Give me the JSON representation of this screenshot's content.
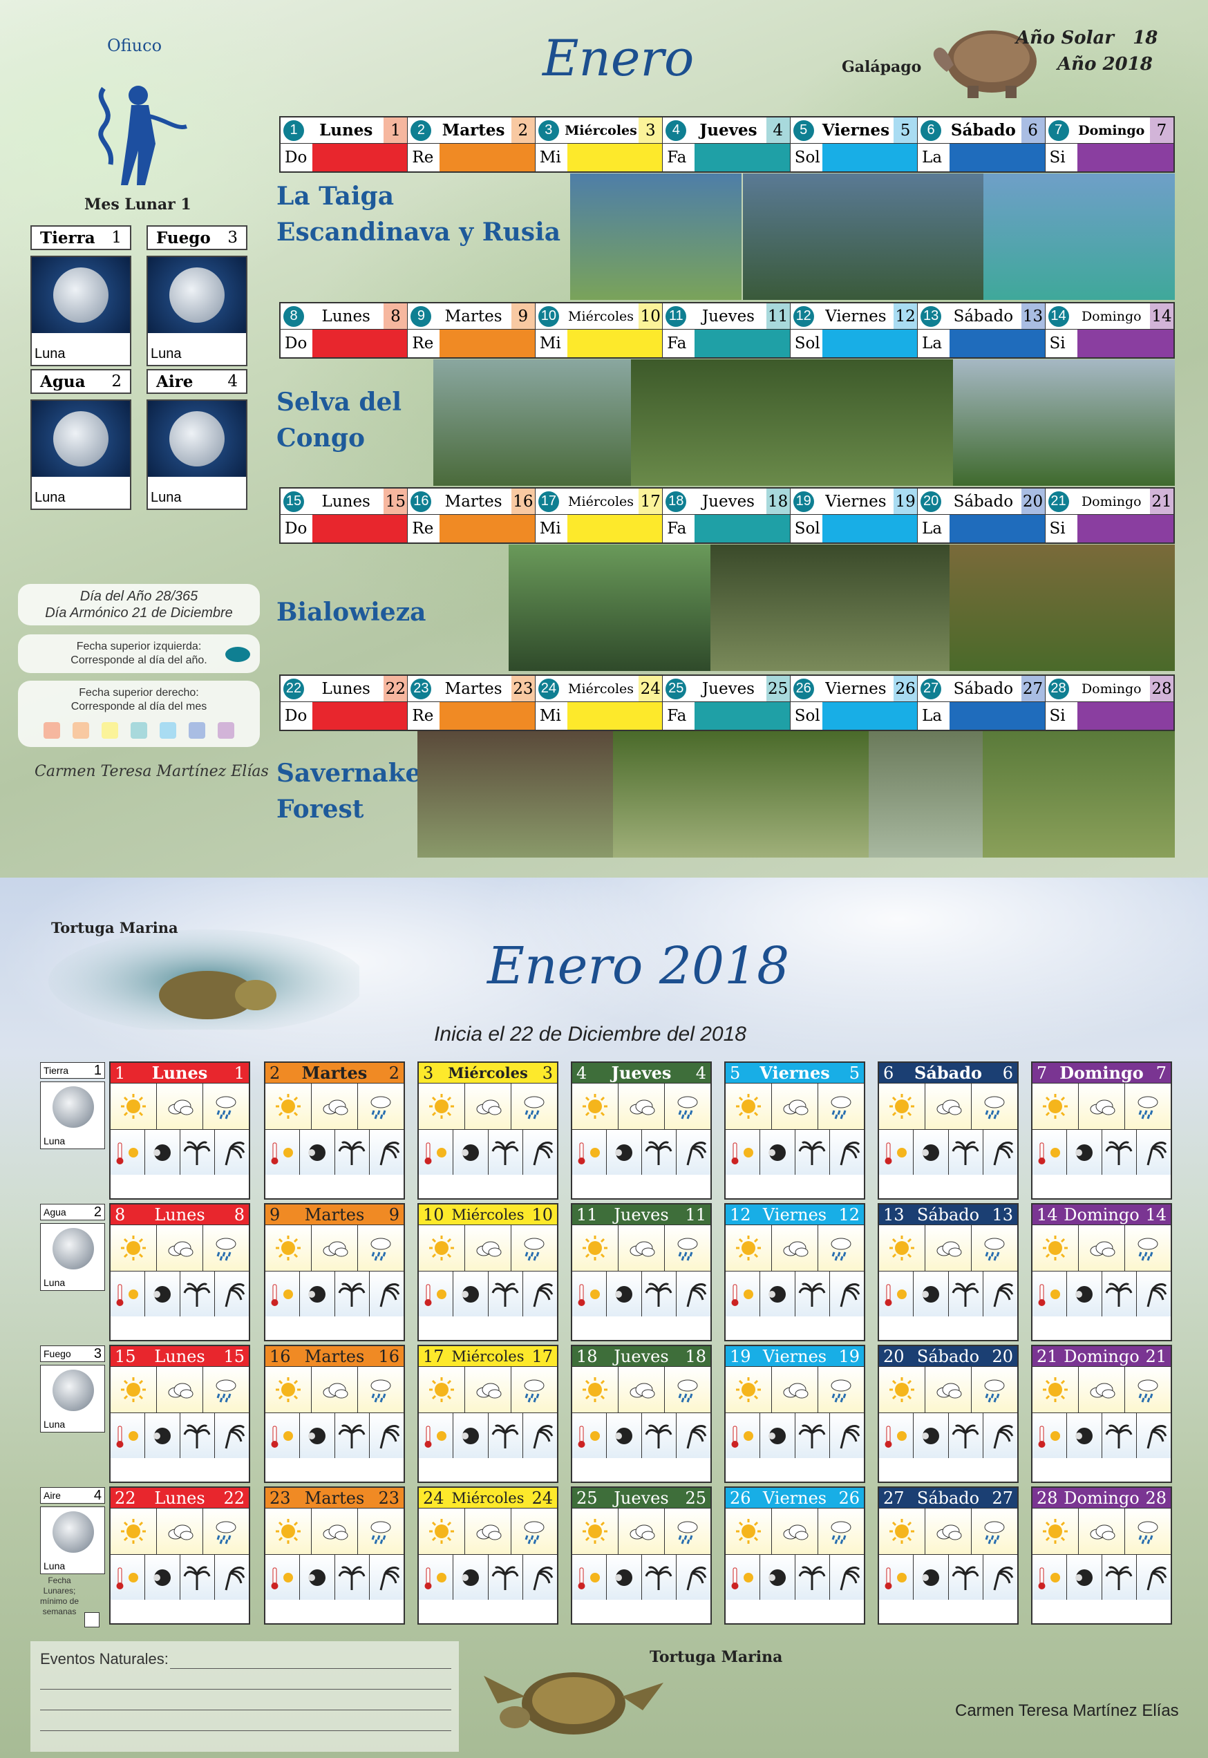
{
  "top": {
    "month_title": "Enero",
    "solar_year_label": "Año Solar",
    "solar_year_num": "18",
    "year_label": "Año 2018",
    "galapago_label": "Galápago",
    "constellation": "Ofiuco",
    "lunar_month": "Mes Lunar 1",
    "elements": [
      {
        "name": "Tierra",
        "num": "1",
        "moon_label": "Luna"
      },
      {
        "name": "Fuego",
        "num": "3",
        "moon_label": "Luna"
      },
      {
        "name": "Agua",
        "num": "2",
        "moon_label": "Luna"
      },
      {
        "name": "Aire",
        "num": "4",
        "moon_label": "Luna"
      }
    ],
    "info": {
      "day_of_year": "Día del Año 28/365",
      "harmonic_day": "Día Armónico 21 de Diciembre",
      "top_left_line1": "Fecha superior izquierda:",
      "top_left_line2": "Corresponde al día del año.",
      "top_right_line1": "Fecha superior derecho:",
      "top_right_line2": "Corresponde al día del mes"
    },
    "author": "Carmen Teresa Martínez Elías",
    "note_labels": [
      "Do",
      "Re",
      "Mi",
      "Fa",
      "Sol",
      "La",
      "Si"
    ],
    "note_colors": [
      "#e8262d",
      "#f08a24",
      "#fde92b",
      "#1fa0a6",
      "#18aee6",
      "#1f6cbc",
      "#8a3ea0"
    ],
    "legend_colors": [
      "#f6b79f",
      "#f8c9a2",
      "#fbf39a",
      "#a8d9dc",
      "#a9dcf2",
      "#a9bde3",
      "#d2b4d8"
    ],
    "weeks": [
      {
        "region": "La Taiga Escandinava y Rusia",
        "days": [
          {
            "circ": "1",
            "name": "Lunes",
            "num": "1"
          },
          {
            "circ": "2",
            "name": "Martes",
            "num": "2"
          },
          {
            "circ": "3",
            "name": "Miércoles",
            "num": "3"
          },
          {
            "circ": "4",
            "name": "Jueves",
            "num": "4"
          },
          {
            "circ": "5",
            "name": "Viernes",
            "num": "5"
          },
          {
            "circ": "6",
            "name": "Sábado",
            "num": "6"
          },
          {
            "circ": "7",
            "name": "Domingo",
            "num": "7"
          }
        ]
      },
      {
        "region": "Selva del Congo",
        "days": [
          {
            "circ": "8",
            "name": "Lunes",
            "num": "8"
          },
          {
            "circ": "9",
            "name": "Martes",
            "num": "9"
          },
          {
            "circ": "10",
            "name": "Miércoles",
            "num": "10"
          },
          {
            "circ": "11",
            "name": "Jueves",
            "num": "11"
          },
          {
            "circ": "12",
            "name": "Viernes",
            "num": "12"
          },
          {
            "circ": "13",
            "name": "Sábado",
            "num": "13"
          },
          {
            "circ": "14",
            "name": "Domingo",
            "num": "14"
          }
        ]
      },
      {
        "region": "Bialowieza",
        "days": [
          {
            "circ": "15",
            "name": "Lunes",
            "num": "15"
          },
          {
            "circ": "16",
            "name": "Martes",
            "num": "16"
          },
          {
            "circ": "17",
            "name": "Miércoles",
            "num": "17"
          },
          {
            "circ": "18",
            "name": "Jueves",
            "num": "18"
          },
          {
            "circ": "19",
            "name": "Viernes",
            "num": "19"
          },
          {
            "circ": "20",
            "name": "Sábado",
            "num": "20"
          },
          {
            "circ": "21",
            "name": "Domingo",
            "num": "21"
          }
        ]
      },
      {
        "region": "Savernake Forest",
        "days": [
          {
            "circ": "22",
            "name": "Lunes",
            "num": "22"
          },
          {
            "circ": "23",
            "name": "Martes",
            "num": "23"
          },
          {
            "circ": "24",
            "name": "Miércoles",
            "num": "24"
          },
          {
            "circ": "25",
            "name": "Jueves",
            "num": "25"
          },
          {
            "circ": "26",
            "name": "Viernes",
            "num": "26"
          },
          {
            "circ": "27",
            "name": "Sábado",
            "num": "27"
          },
          {
            "circ": "28",
            "name": "Domingo",
            "num": "28"
          }
        ]
      }
    ]
  },
  "bottom": {
    "title": "Enero 2018",
    "subtitle": "Inicia el 22 de Diciembre del 2018",
    "sea_turtle_label": "Tortuga Marina",
    "elements": [
      {
        "name": "Tierra",
        "num": "1",
        "moon_label": "Luna"
      },
      {
        "name": "Agua",
        "num": "2",
        "moon_label": "Luna"
      },
      {
        "name": "Fuego",
        "num": "3",
        "moon_label": "Luna"
      },
      {
        "name": "Aire",
        "num": "4",
        "moon_label": "Luna"
      }
    ],
    "fecha_lunares": "Fecha Lunares; mínimo de semanas",
    "header_colors": [
      "#e8262d",
      "#f08a24",
      "#fde92b",
      "#3e6e3a",
      "#18aee6",
      "#1b3f73",
      "#7a3592"
    ],
    "header_text_colors": [
      "#fff",
      "#222",
      "#222",
      "#fff",
      "#fff",
      "#fff",
      "#fff"
    ],
    "day_names": [
      "Lunes",
      "Martes",
      "Miércoles",
      "Jueves",
      "Viernes",
      "Sábado",
      "Domingo"
    ],
    "weather_icons": [
      "sun-icon",
      "cloud-icon",
      "rain-cloud-icon"
    ],
    "activity_icons": [
      "thermometer-sun-icon",
      "moon-phase-icon",
      "palm-tree-icon",
      "wind-palm-icon"
    ],
    "events_label": "Eventos Naturales:",
    "author": "Carmen Teresa Martínez Elías"
  }
}
